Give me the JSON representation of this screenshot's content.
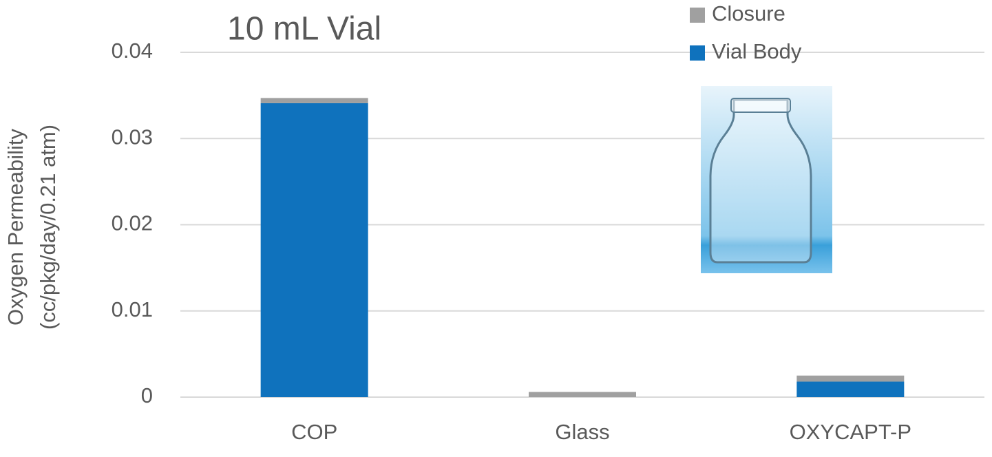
{
  "chart_data": {
    "type": "stacked_bar",
    "title": "10 mL Vial",
    "y_label": [
      "Oxygen Permeability",
      "(cc/pkg/day/0.21 atm)"
    ],
    "categories": [
      "COP",
      "Glass",
      "OXYCAPT-P"
    ],
    "series": [
      {
        "name": "Vial Body",
        "color": "#0f72bd",
        "values": [
          0.0341,
          0,
          0.0018
        ]
      },
      {
        "name": "Closure",
        "color": "#a0a0a0",
        "values": [
          0.0006,
          0.0006,
          0.0007
        ]
      }
    ],
    "ylim": [
      0,
      0.04
    ],
    "yticks": [
      0,
      0.01,
      0.02,
      0.03,
      0.04
    ],
    "grid": true
  }
}
